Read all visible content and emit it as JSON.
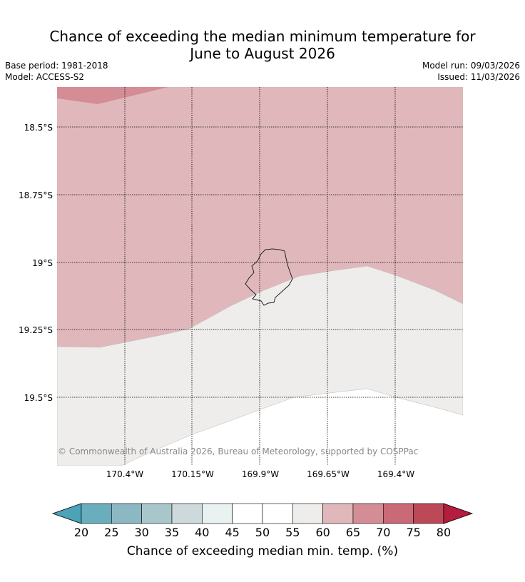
{
  "title": {
    "line1": "Chance of exceeding the median minimum temperature for",
    "line2": "June to August 2026"
  },
  "meta": {
    "base_period": "Base period: 1981-2018",
    "model": "Model: ACCESS-S2",
    "model_run": "Model run: 09/03/2026",
    "issued": "Issued: 11/03/2026"
  },
  "map": {
    "lat_labels": [
      "18.5°S",
      "18.75°S",
      "19°S",
      "19.25°S",
      "19.5°S"
    ],
    "lon_labels": [
      "170.4°W",
      "170.15°W",
      "169.9°W",
      "169.65°W",
      "169.4°W"
    ],
    "copyright": "© Commonwealth of Australia 2026, Bureau of Meteorology, supported by COSPPac",
    "region_categories": {
      "top_left_corner": "70-75",
      "upper_band": "65-70",
      "middle_band": "55-60",
      "lower_band": "50-55"
    }
  },
  "colorbar": {
    "ticks": [
      "20",
      "25",
      "30",
      "35",
      "40",
      "45",
      "50",
      "55",
      "60",
      "65",
      "70",
      "75",
      "80"
    ],
    "colors": [
      "#4aa3b6",
      "#6aaebe",
      "#8bb8c3",
      "#a9c7cb",
      "#cdd9db",
      "#eaf1f1",
      "#ffffff",
      "#ffffff",
      "#eeedeb",
      "#e0b8bc",
      "#d48d94",
      "#c96a76",
      "#bd4858",
      "#b41d3d"
    ],
    "label": "Chance of exceeding median min. temp. (%)"
  }
}
